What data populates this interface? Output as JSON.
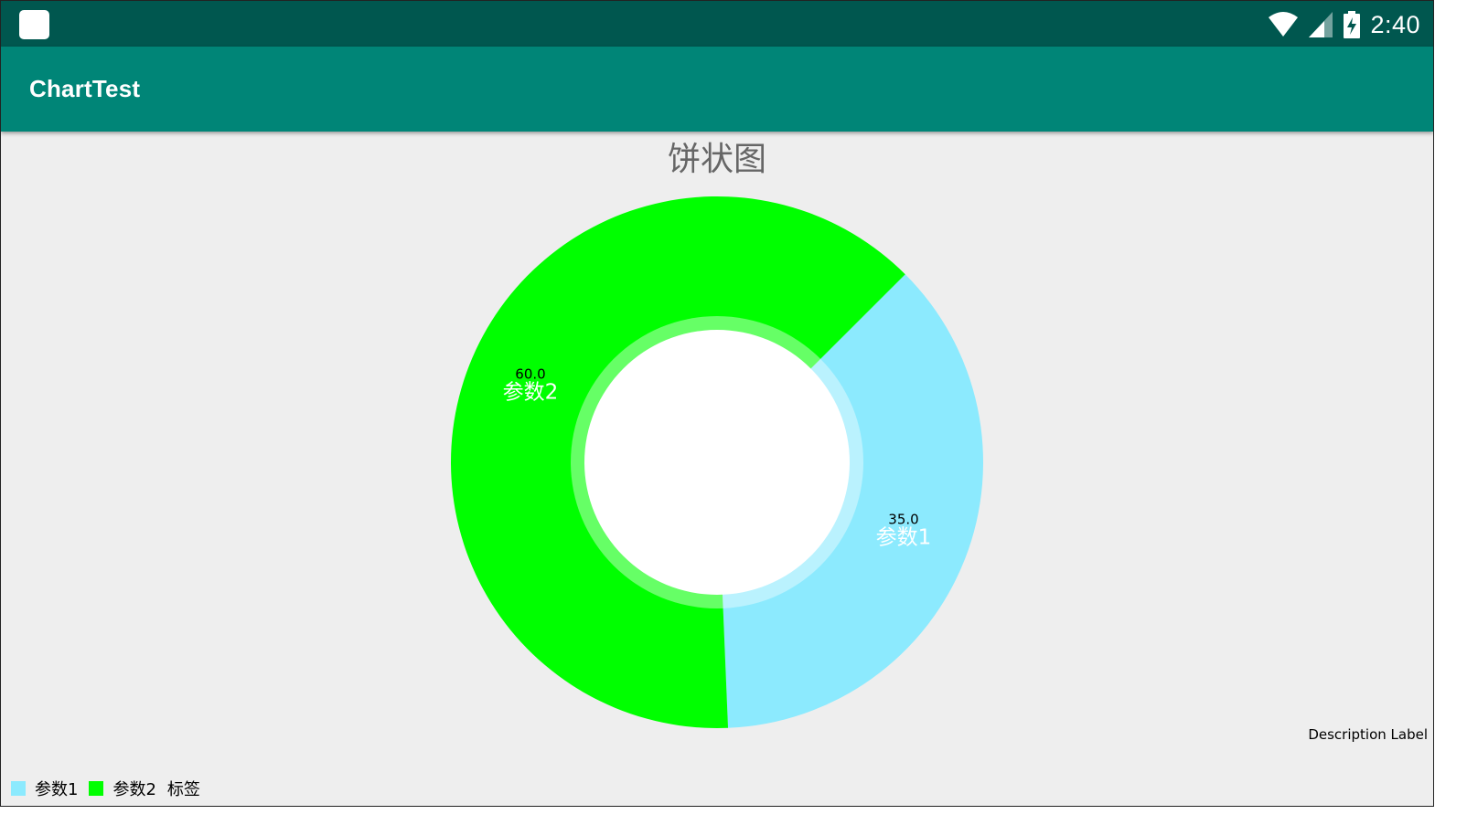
{
  "status_bar": {
    "time": "2:40",
    "icons": [
      "app-icon",
      "wifi-icon",
      "signal-icon",
      "battery-charging-icon"
    ]
  },
  "app_bar": {
    "title": "ChartTest",
    "background": "#008577"
  },
  "chart_data": {
    "type": "pie",
    "title": "饼状图",
    "donut": true,
    "slices": [
      {
        "name": "参数1",
        "value": 35.0,
        "value_label": "35.0",
        "color": "#8ceafe"
      },
      {
        "name": "参数2",
        "value": 60.0,
        "value_label": "60.0",
        "color": "#00ff00"
      }
    ],
    "legend": {
      "placement": "bottom-left",
      "entries": [
        "参数1",
        "参数2"
      ],
      "label": "标签"
    },
    "description": "Description Label"
  }
}
